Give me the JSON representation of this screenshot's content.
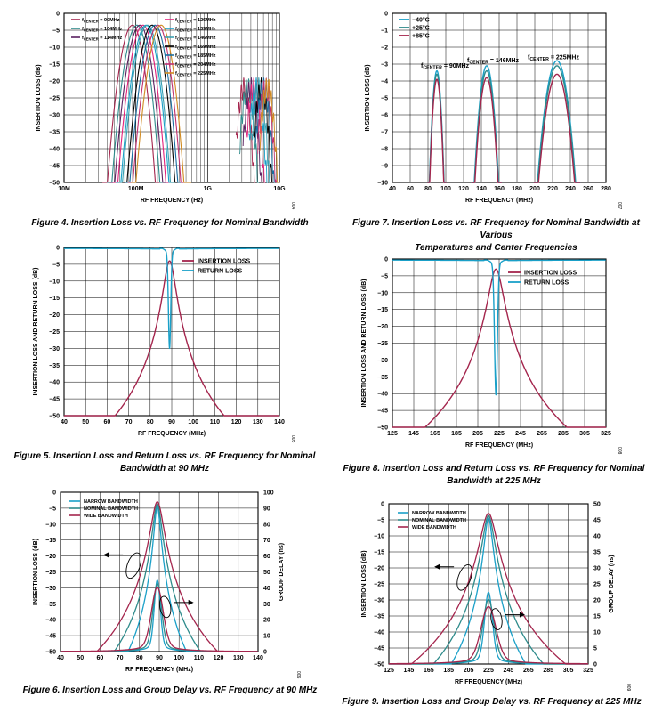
{
  "chart_data": [
    {
      "id": "fig4",
      "type": "line",
      "xscale": "log",
      "xlabel": "RF FREQUENCY (Hz)",
      "ylabel": "INSERTION LOSS (dB)",
      "xlim": [
        10000000,
        10000000000
      ],
      "ylim": [
        -50,
        0
      ],
      "xticks": [
        {
          "v": 10000000,
          "t": "10M"
        },
        {
          "v": 100000000,
          "t": "100M"
        },
        {
          "v": 1000000000,
          "t": "1G"
        },
        {
          "v": 10000000000,
          "t": "10G"
        }
      ],
      "yticks": [
        0,
        -5,
        -10,
        -15,
        -20,
        -25,
        -30,
        -35,
        -40,
        -45,
        -50
      ],
      "figid": "004",
      "legend_pre": "f",
      "legend_sub": "CENTER",
      "series": [
        {
          "name": "= 90MHz",
          "color": "#a4254d",
          "fc": 90000000
        },
        {
          "name": "= 104MHz",
          "color": "#2e8b8b",
          "fc": 104000000
        },
        {
          "name": "= 114MHz",
          "color": "#5a2060",
          "fc": 114000000
        },
        {
          "name": "= 126MHz",
          "color": "#e3227b",
          "fc": 126000000
        },
        {
          "name": "= 139MHz",
          "color": "#1aa0c8",
          "fc": 139000000
        },
        {
          "name": "= 146MHz",
          "color": "#3aa0b0",
          "fc": 146000000
        },
        {
          "name": "= 169MHz",
          "color": "#000000",
          "fc": 169000000
        },
        {
          "name": "= 185MHz",
          "color": "#1a6ea0",
          "fc": 185000000
        },
        {
          "name": "= 204MHz",
          "color": "#c03070",
          "fc": 204000000
        },
        {
          "name": "= 225MHz",
          "color": "#d08a20",
          "fc": 225000000
        }
      ]
    },
    {
      "id": "fig7",
      "type": "line",
      "xlabel": "RF FREQUENCY (MHz)",
      "ylabel": "INSERTION LOSS (dB)",
      "xlim": [
        40,
        280
      ],
      "ylim": [
        -10,
        0
      ],
      "xticks": [
        40,
        60,
        80,
        100,
        120,
        140,
        160,
        180,
        200,
        220,
        240,
        260,
        280
      ],
      "yticks": [
        0,
        -1,
        -2,
        -3,
        -4,
        -5,
        -6,
        -7,
        -8,
        -9,
        -10
      ],
      "figid": "007",
      "series": [
        {
          "name": "−40°C",
          "color": "#1aa0c8",
          "peaks": [
            {
              "fc": 90,
              "il": -3.4
            },
            {
              "fc": 146,
              "il": -3.1
            },
            {
              "fc": 225,
              "il": -2.8
            }
          ]
        },
        {
          "name": "+25°C",
          "color": "#2e8b8b",
          "peaks": [
            {
              "fc": 90,
              "il": -3.6
            },
            {
              "fc": 146,
              "il": -3.4
            },
            {
              "fc": 225,
              "il": -3.1
            }
          ]
        },
        {
          "name": "+85°C",
          "color": "#a4254d",
          "peaks": [
            {
              "fc": 90,
              "il": -3.9
            },
            {
              "fc": 146,
              "il": -3.8
            },
            {
              "fc": 225,
              "il": -3.6
            }
          ]
        }
      ],
      "annotations": [
        {
          "pre": "f",
          "sub": "CENTER",
          "post": " = 90MHz",
          "x": 72,
          "y": -3.2
        },
        {
          "pre": "f",
          "sub": "CENTER",
          "post": " = 146MHz",
          "x": 124,
          "y": -2.9
        },
        {
          "pre": "f",
          "sub": "CENTER",
          "post": " = 225MHz",
          "x": 192,
          "y": -2.7
        }
      ]
    },
    {
      "id": "fig5",
      "type": "line",
      "xlabel": "RF FREQUENCY (MHz)",
      "ylabel": "INSERTION LOSS AND RETURN LOSS (dB)",
      "xlim": [
        40,
        140
      ],
      "ylim": [
        -50,
        0
      ],
      "xticks": [
        40,
        50,
        60,
        70,
        80,
        90,
        100,
        110,
        120,
        130,
        140
      ],
      "yticks": [
        0,
        -5,
        -10,
        -15,
        -20,
        -25,
        -30,
        -35,
        -40,
        -45,
        -50
      ],
      "figid": "005",
      "series": [
        {
          "name": "INSERTION LOSS",
          "color": "#a4254d",
          "fc": 89,
          "il": -4,
          "kind": "il"
        },
        {
          "name": "RETURN LOSS",
          "color": "#1aa0c8",
          "fc": 89,
          "depth": -28.5,
          "kind": "rl"
        }
      ]
    },
    {
      "id": "fig8",
      "type": "line",
      "xlabel": "RF FREQUENCY (MHz)",
      "ylabel": "INSERTION LOSS AND RETURN LOSS (dB)",
      "xlim": [
        125,
        325
      ],
      "ylim": [
        -50,
        0
      ],
      "xticks": [
        125,
        145,
        165,
        185,
        205,
        225,
        245,
        265,
        285,
        305,
        325
      ],
      "yticks": [
        0,
        -5,
        -10,
        -15,
        -20,
        -25,
        -30,
        -35,
        -40,
        -45,
        -50
      ],
      "figid": "008",
      "series": [
        {
          "name": "INSERTION LOSS",
          "color": "#a4254d",
          "fc": 222,
          "il": -3,
          "kind": "il"
        },
        {
          "name": "RETURN LOSS",
          "color": "#1aa0c8",
          "fc": 222,
          "depth": -39,
          "kind": "rl"
        }
      ]
    },
    {
      "id": "fig6",
      "type": "line",
      "xlabel": "RF FREQUENCY (MHz)",
      "ylabel": "INSERTION LOSS (dB)",
      "y2label": "GROUP DELAY (ns)",
      "xlim": [
        40,
        140
      ],
      "ylim": [
        -50,
        0
      ],
      "y2lim": [
        0,
        100
      ],
      "xticks": [
        40,
        50,
        60,
        70,
        80,
        90,
        100,
        110,
        120,
        130,
        140
      ],
      "yticks": [
        0,
        -5,
        -10,
        -15,
        -20,
        -25,
        -30,
        -35,
        -40,
        -45,
        -50
      ],
      "y2ticks": [
        0,
        10,
        20,
        30,
        40,
        50,
        60,
        70,
        80,
        90,
        100
      ],
      "figid": "006",
      "series": [
        {
          "name": "NARROW BANDWIDTH",
          "color": "#1aa0c8",
          "fc": 89,
          "bw": "n"
        },
        {
          "name": "NOMINAL BANDWIDTH",
          "color": "#2e8b8b",
          "fc": 89,
          "bw": "m"
        },
        {
          "name": "WIDE BANDWIDTH",
          "color": "#a4254d",
          "fc": 89,
          "bw": "w"
        }
      ]
    },
    {
      "id": "fig9",
      "type": "line",
      "xlabel": "RF FREQUENCY (MHz)",
      "ylabel": "INSERTION LOSS (dB)",
      "y2label": "GROUP DELAY (ns)",
      "xlim": [
        125,
        325
      ],
      "ylim": [
        -50,
        0
      ],
      "y2lim": [
        0,
        50
      ],
      "xticks": [
        125,
        145,
        165,
        185,
        205,
        225,
        245,
        265,
        285,
        305,
        325
      ],
      "yticks": [
        0,
        -5,
        -10,
        -15,
        -20,
        -25,
        -30,
        -35,
        -40,
        -45,
        -50
      ],
      "y2ticks": [
        0,
        5,
        10,
        15,
        20,
        25,
        30,
        35,
        40,
        45,
        50
      ],
      "figid": "009",
      "series": [
        {
          "name": "NARROW BANDWIDTH",
          "color": "#1aa0c8",
          "fc": 225,
          "bw": "n"
        },
        {
          "name": "NOMINAL BANDWIDTH",
          "color": "#2e8b8b",
          "fc": 225,
          "bw": "m"
        },
        {
          "name": "WIDE BANDWIDTH",
          "color": "#a4254d",
          "fc": 225,
          "bw": "w"
        }
      ]
    }
  ],
  "captions": {
    "fig4": "Figure 4. Insertion Loss vs. RF Frequency for Nominal Bandwidth",
    "fig7a": "Figure 7. Insertion Loss vs. RF Frequency for Nominal Bandwidth at Various",
    "fig7b": "Temperatures and Center Frequencies",
    "fig5a": "Figure 5. Insertion Loss and Return Loss vs. RF Frequency for Nominal",
    "fig5b": "Bandwidth at 90 MHz",
    "fig8a": "Figure 8. Insertion Loss and Return Loss vs. RF Frequency for Nominal",
    "fig8b": "Bandwidth at 225 MHz",
    "fig6": "Figure 6. Insertion Loss and Group Delay vs. RF Frequency at 90 MHz",
    "fig9": "Figure 9. Insertion Loss and Group Delay vs. RF Frequency at 225 MHz"
  }
}
